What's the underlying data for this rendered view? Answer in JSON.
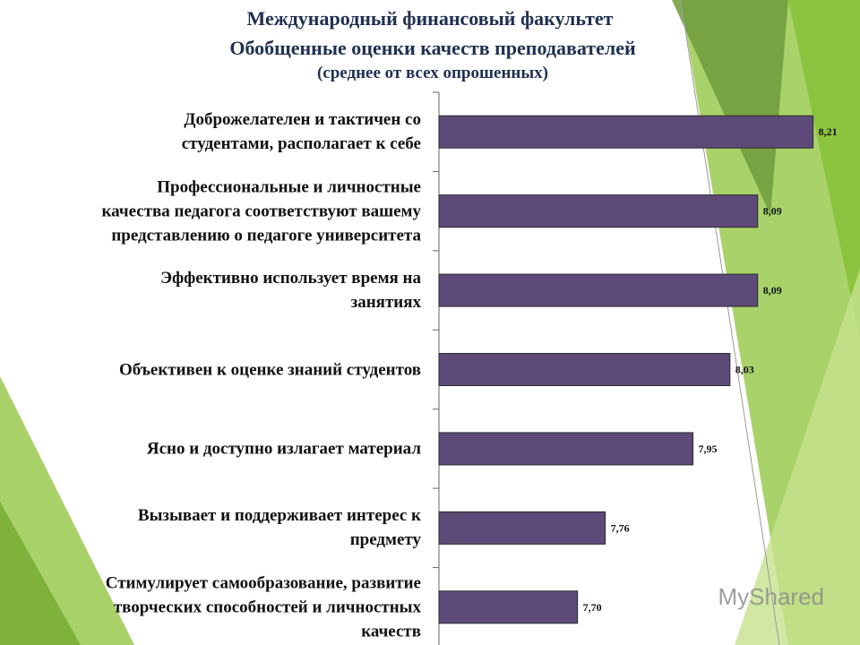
{
  "chart_data": {
    "type": "bar",
    "orientation": "horizontal",
    "title": "Международный финансовый факультет",
    "subtitle": "Обобщенные оценки качеств преподавателей",
    "note": "(среднее от всех опрошенных)",
    "categories": [
      "Доброжелателен и тактичен со\nстудентами, располагает к себе",
      "Профессиональные и личностные\nкачества педагога соответствуют вашему\nпредставлению о педагоге университета",
      "Эффективно использует время на\nзанятиях",
      "Объективен к оценке знаний студентов",
      "Ясно и доступно излагает материал",
      "Вызывает и поддерживает интерес к\nпредмету",
      "Стимулирует самообразование, развитие\nтворческих способностей и личностных\nкачеств"
    ],
    "values": [
      8.21,
      8.09,
      8.09,
      8.03,
      7.95,
      7.76,
      7.7
    ],
    "value_labels": [
      "8,21",
      "8,09",
      "8,09",
      "8,03",
      "7,95",
      "7,76",
      "7,70"
    ],
    "color": "#5e4a78",
    "xlim": [
      7.4,
      8.3
    ],
    "watermark": "MyShared"
  }
}
